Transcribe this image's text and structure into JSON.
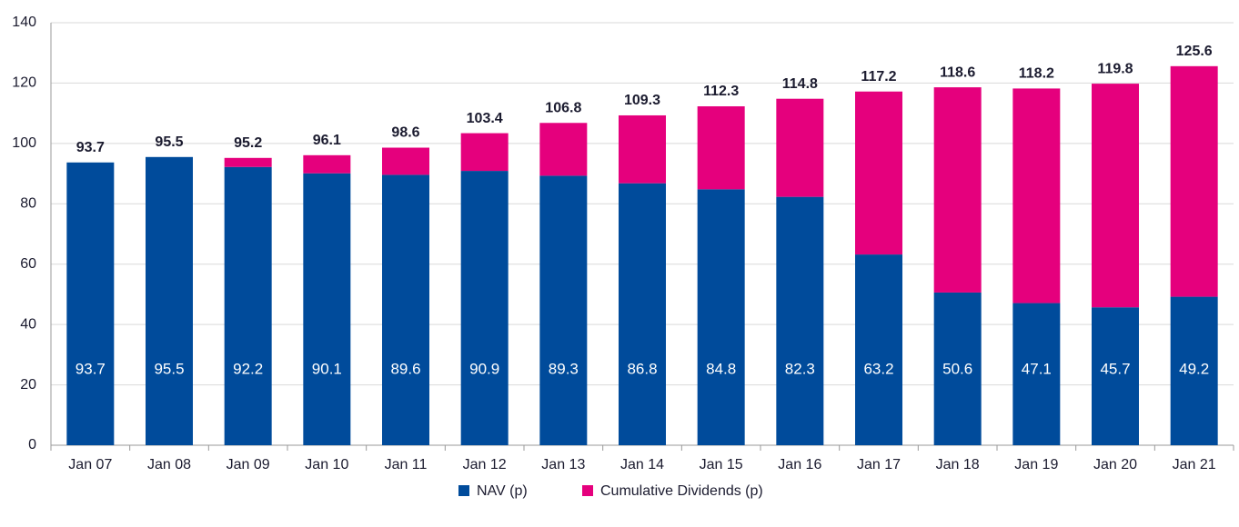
{
  "chart_data": {
    "type": "stacked_bar",
    "categories": [
      "Jan 07",
      "Jan 08",
      "Jan 09",
      "Jan 10",
      "Jan 11",
      "Jan 12",
      "Jan 13",
      "Jan 14",
      "Jan 15",
      "Jan 16",
      "Jan 17",
      "Jan 18",
      "Jan 19",
      "Jan 20",
      "Jan 21"
    ],
    "series": [
      {
        "name": "NAV (p)",
        "color": "#004b9b",
        "values": [
          93.7,
          95.5,
          92.2,
          90.1,
          89.6,
          90.9,
          89.3,
          86.8,
          84.8,
          82.3,
          63.2,
          50.6,
          47.1,
          45.7,
          49.2
        ]
      },
      {
        "name": "Cumulative Dividends (p)",
        "color": "#e5007d",
        "values": [
          0,
          0,
          3.0,
          6.0,
          9.0,
          12.5,
          17.5,
          22.5,
          27.5,
          32.5,
          54.0,
          68.0,
          71.1,
          74.1,
          76.4
        ]
      }
    ],
    "totals": [
      93.7,
      95.5,
      95.2,
      96.1,
      98.6,
      103.4,
      106.8,
      109.3,
      112.3,
      114.8,
      117.2,
      118.6,
      118.2,
      119.8,
      125.6
    ],
    "ylim": [
      0,
      140
    ],
    "yticks": [
      0,
      20,
      40,
      60,
      80,
      100,
      120,
      140
    ],
    "grid": true,
    "legend": "bottom"
  }
}
